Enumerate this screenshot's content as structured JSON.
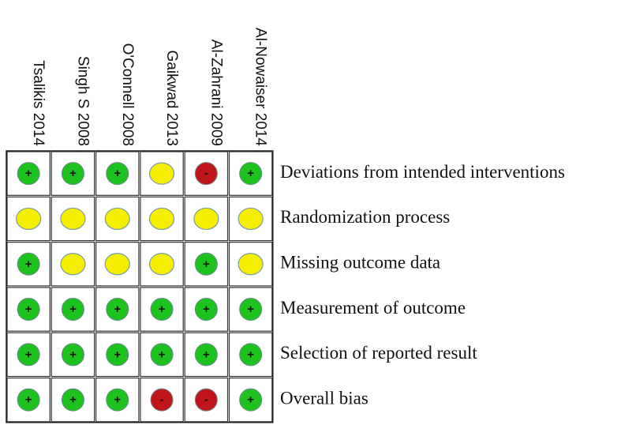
{
  "columns": [
    "Tsalikis 2014",
    "Singh S 2008",
    "O'Connell 2008",
    "Gaikwad 2013",
    "Al-Zahrani 2009",
    "Al-Nowaiser 2014"
  ],
  "rows": [
    {
      "label": "Deviations from intended interventions",
      "cells": [
        {
          "symbol": "+",
          "color": "#1ec21e"
        },
        {
          "symbol": "+",
          "color": "#1ec21e"
        },
        {
          "symbol": "+",
          "color": "#1ec21e"
        },
        {
          "color": "#f4ee00"
        },
        {
          "symbol": "-",
          "color": "#c0161b"
        },
        {
          "symbol": "+",
          "color": "#1ec21e"
        }
      ]
    },
    {
      "label": "Randomization process",
      "cells": [
        {
          "color": "#f4ee00"
        },
        {
          "color": "#f4ee00"
        },
        {
          "color": "#f4ee00"
        },
        {
          "color": "#f4ee00"
        },
        {
          "color": "#f4ee00"
        },
        {
          "color": "#f4ee00"
        }
      ]
    },
    {
      "label": "Missing outcome data",
      "cells": [
        {
          "symbol": "+",
          "color": "#1ec21e"
        },
        {
          "color": "#f4ee00"
        },
        {
          "color": "#f4ee00"
        },
        {
          "color": "#f4ee00"
        },
        {
          "symbol": "+",
          "color": "#1ec21e"
        },
        {
          "color": "#f4ee00"
        }
      ]
    },
    {
      "label": "Measurement of outcome",
      "cells": [
        {
          "symbol": "+",
          "color": "#1ec21e"
        },
        {
          "symbol": "+",
          "color": "#1ec21e"
        },
        {
          "symbol": "+",
          "color": "#1ec21e"
        },
        {
          "symbol": "+",
          "color": "#1ec21e"
        },
        {
          "symbol": "+",
          "color": "#1ec21e"
        },
        {
          "symbol": "+",
          "color": "#1ec21e"
        }
      ]
    },
    {
      "label": "Selection of reported result",
      "cells": [
        {
          "symbol": "+",
          "color": "#1ec21e"
        },
        {
          "symbol": "+",
          "color": "#1ec21e"
        },
        {
          "symbol": "+",
          "color": "#1ec21e"
        },
        {
          "symbol": "+",
          "color": "#1ec21e"
        },
        {
          "symbol": "+",
          "color": "#1ec21e"
        },
        {
          "symbol": "+",
          "color": "#1ec21e"
        }
      ]
    },
    {
      "label": "Overall bias",
      "cells": [
        {
          "symbol": "+",
          "color": "#1ec21e"
        },
        {
          "symbol": "+",
          "color": "#1ec21e"
        },
        {
          "symbol": "+",
          "color": "#1ec21e"
        },
        {
          "symbol": "-",
          "color": "#c0161b"
        },
        {
          "symbol": "-",
          "color": "#c0161b"
        },
        {
          "symbol": "+",
          "color": "#1ec21e"
        }
      ]
    }
  ]
}
